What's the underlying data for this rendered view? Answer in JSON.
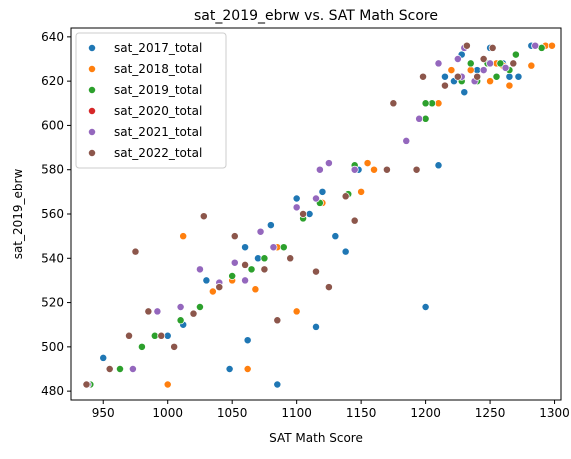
{
  "chart_data": {
    "type": "scatter",
    "title": "sat_2019_ebrw vs. SAT Math Score",
    "xlabel": "SAT Math Score",
    "ylabel": "sat_2019_ebrw",
    "xlim": [
      925,
      1305
    ],
    "ylim": [
      476,
      644
    ],
    "xticks": [
      950,
      1000,
      1050,
      1100,
      1150,
      1200,
      1250,
      1300
    ],
    "yticks": [
      480,
      500,
      520,
      540,
      560,
      580,
      600,
      620,
      640
    ],
    "grid": false,
    "legend_position": "top-left",
    "series": [
      {
        "name": "sat_2017_total",
        "color": "#1f77b4",
        "points": [
          [
            950,
            495
          ],
          [
            1000,
            505
          ],
          [
            1012,
            510
          ],
          [
            1030,
            530
          ],
          [
            1048,
            490
          ],
          [
            1062,
            503
          ],
          [
            1085,
            483
          ],
          [
            1115,
            509
          ],
          [
            1060,
            545
          ],
          [
            1070,
            540
          ],
          [
            1080,
            555
          ],
          [
            1090,
            545
          ],
          [
            1100,
            567
          ],
          [
            1110,
            560
          ],
          [
            1120,
            570
          ],
          [
            1130,
            550
          ],
          [
            1138,
            543
          ],
          [
            1148,
            580
          ],
          [
            1200,
            518
          ],
          [
            1210,
            582
          ],
          [
            1230,
            615
          ],
          [
            1240,
            625
          ],
          [
            1265,
            622
          ],
          [
            1272,
            622
          ],
          [
            1282,
            636
          ],
          [
            1228,
            632
          ],
          [
            1222,
            620
          ],
          [
            1260,
            628
          ],
          [
            1215,
            622
          ],
          [
            1250,
            635
          ]
        ]
      },
      {
        "name": "sat_2018_total",
        "color": "#ff7f0e",
        "points": [
          [
            1000,
            483
          ],
          [
            1012,
            550
          ],
          [
            1035,
            525
          ],
          [
            1050,
            530
          ],
          [
            1062,
            490
          ],
          [
            1068,
            526
          ],
          [
            1085,
            545
          ],
          [
            1100,
            516
          ],
          [
            1120,
            565
          ],
          [
            1150,
            570
          ],
          [
            1155,
            583
          ],
          [
            1160,
            580
          ],
          [
            1250,
            620
          ],
          [
            1265,
            618
          ],
          [
            1282,
            627
          ],
          [
            1293,
            636
          ],
          [
            1298,
            636
          ],
          [
            1260,
            627
          ],
          [
            1255,
            628
          ],
          [
            1210,
            610
          ],
          [
            1235,
            625
          ],
          [
            1220,
            625
          ],
          [
            1245,
            630
          ]
        ]
      },
      {
        "name": "sat_2019_total",
        "color": "#2ca02c",
        "points": [
          [
            940,
            483
          ],
          [
            963,
            490
          ],
          [
            980,
            500
          ],
          [
            990,
            505
          ],
          [
            1010,
            512
          ],
          [
            1025,
            518
          ],
          [
            1050,
            532
          ],
          [
            1065,
            535
          ],
          [
            1075,
            540
          ],
          [
            1090,
            545
          ],
          [
            1105,
            558
          ],
          [
            1118,
            565
          ],
          [
            1140,
            569
          ],
          [
            1145,
            582
          ],
          [
            1200,
            603
          ],
          [
            1205,
            610
          ],
          [
            1228,
            620
          ],
          [
            1235,
            628
          ],
          [
            1240,
            620
          ],
          [
            1248,
            628
          ],
          [
            1258,
            628
          ],
          [
            1265,
            625
          ],
          [
            1270,
            632
          ],
          [
            1285,
            636
          ],
          [
            1290,
            635
          ],
          [
            1255,
            622
          ],
          [
            1200,
            610
          ]
        ]
      },
      {
        "name": "sat_2020_total",
        "color": "#d62728",
        "points": []
      },
      {
        "name": "sat_2021_total",
        "color": "#9467bd",
        "points": [
          [
            938,
            483
          ],
          [
            973,
            490
          ],
          [
            992,
            516
          ],
          [
            1010,
            518
          ],
          [
            1025,
            535
          ],
          [
            1040,
            529
          ],
          [
            1052,
            538
          ],
          [
            1060,
            530
          ],
          [
            1072,
            552
          ],
          [
            1082,
            545
          ],
          [
            1100,
            563
          ],
          [
            1115,
            567
          ],
          [
            1118,
            580
          ],
          [
            1125,
            583
          ],
          [
            1145,
            580
          ],
          [
            1185,
            593
          ],
          [
            1195,
            603
          ],
          [
            1210,
            628
          ],
          [
            1228,
            622
          ],
          [
            1238,
            620
          ],
          [
            1245,
            625
          ],
          [
            1250,
            628
          ],
          [
            1262,
            626
          ],
          [
            1285,
            636
          ],
          [
            1225,
            630
          ],
          [
            1230,
            635
          ]
        ]
      },
      {
        "name": "sat_2022_total",
        "color": "#8c564b",
        "points": [
          [
            937,
            483
          ],
          [
            955,
            490
          ],
          [
            970,
            505
          ],
          [
            975,
            543
          ],
          [
            985,
            516
          ],
          [
            995,
            505
          ],
          [
            1005,
            500
          ],
          [
            1020,
            515
          ],
          [
            1028,
            559
          ],
          [
            1040,
            527
          ],
          [
            1052,
            550
          ],
          [
            1060,
            537
          ],
          [
            1075,
            535
          ],
          [
            1085,
            512
          ],
          [
            1095,
            540
          ],
          [
            1105,
            560
          ],
          [
            1115,
            534
          ],
          [
            1125,
            527
          ],
          [
            1138,
            568
          ],
          [
            1145,
            557
          ],
          [
            1170,
            580
          ],
          [
            1175,
            610
          ],
          [
            1193,
            580
          ],
          [
            1198,
            622
          ],
          [
            1215,
            618
          ],
          [
            1225,
            622
          ],
          [
            1232,
            636
          ],
          [
            1245,
            630
          ],
          [
            1252,
            635
          ],
          [
            1268,
            628
          ],
          [
            1240,
            622
          ]
        ]
      }
    ]
  }
}
